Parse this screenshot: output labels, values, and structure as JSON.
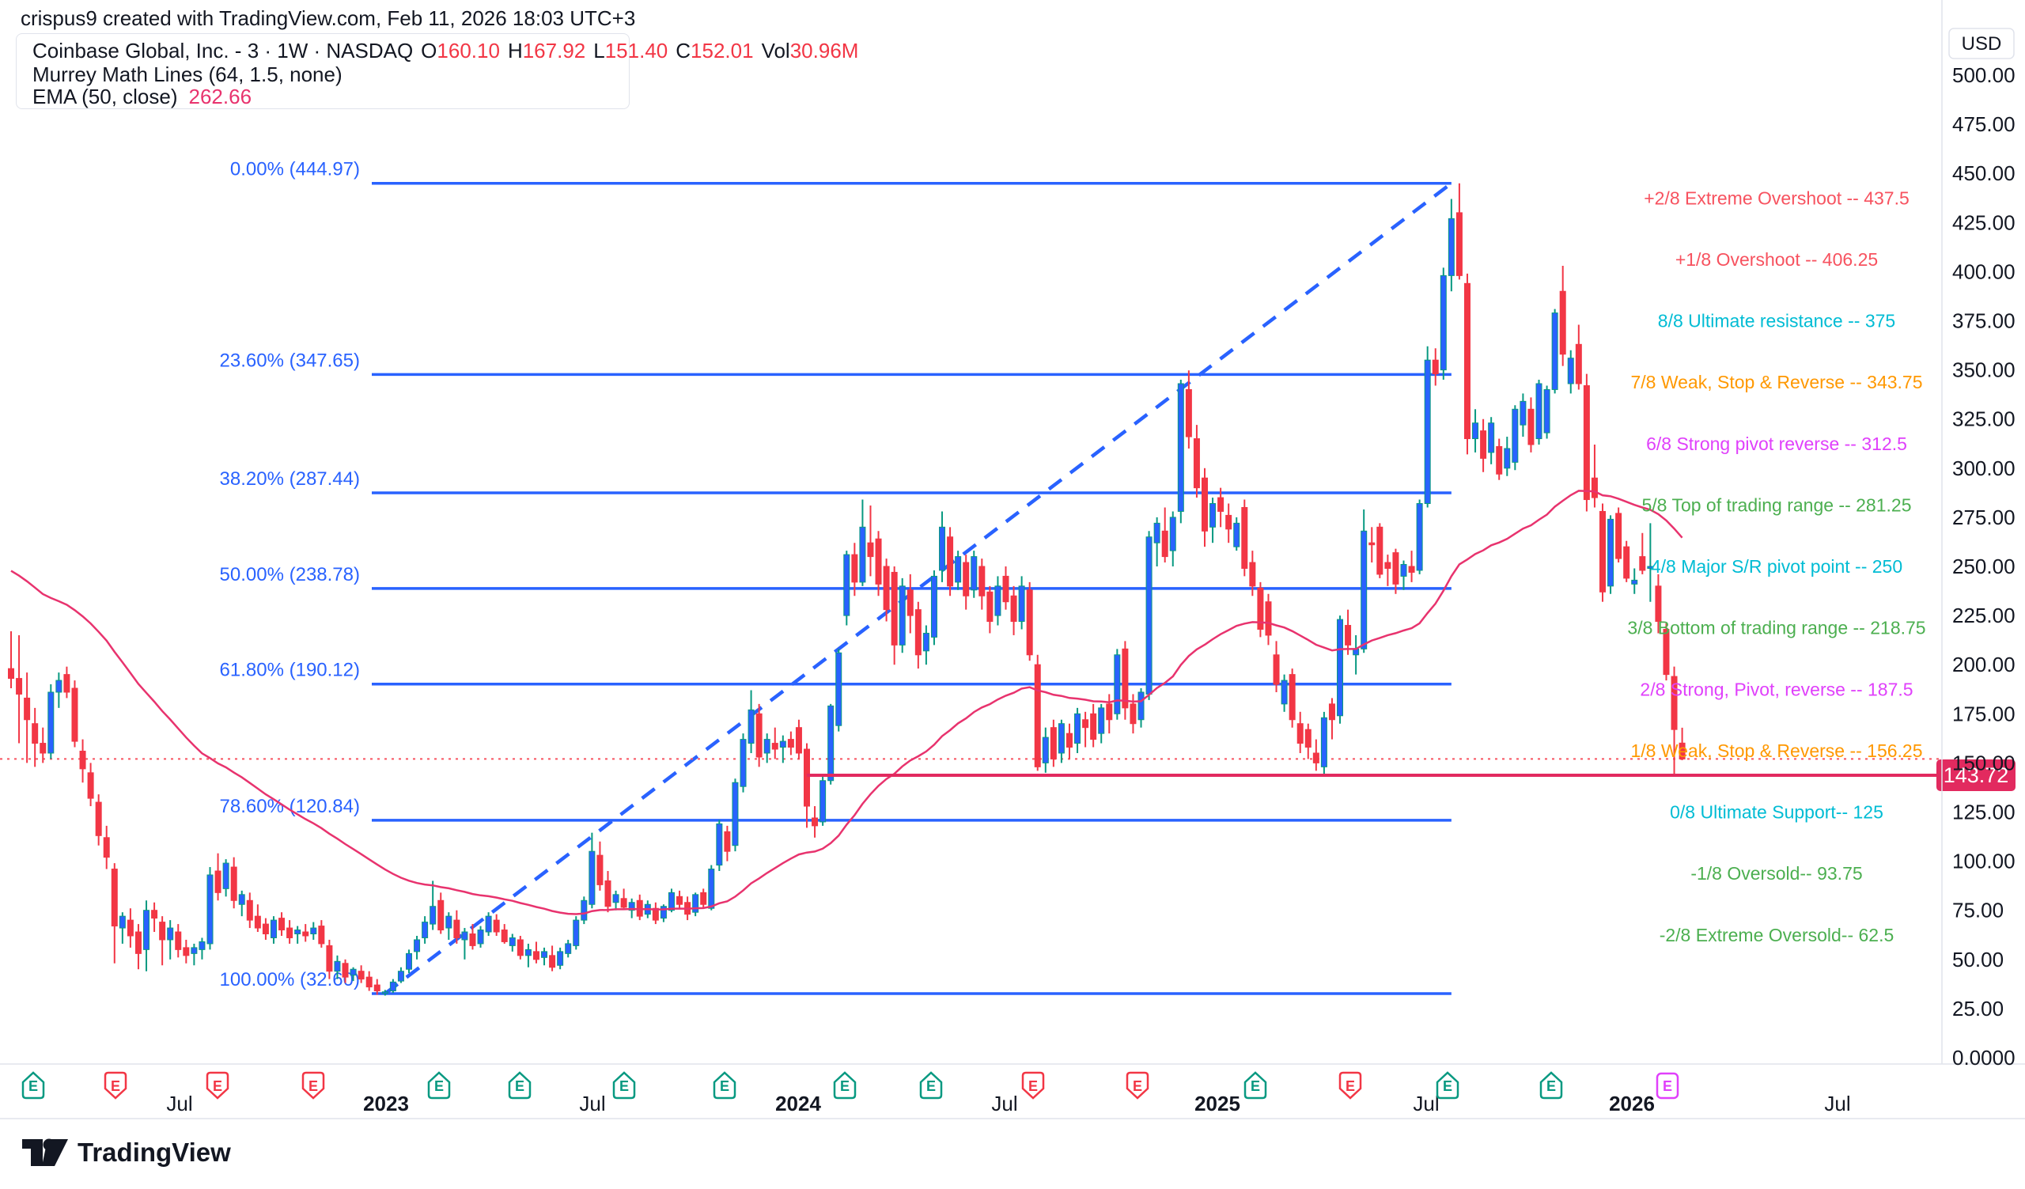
{
  "header": {
    "attribution": "crispus9 created with TradingView.com, Feb 11, 2026 18:03 UTC+3"
  },
  "legend": {
    "symbol_line": "Coinbase Global, Inc. - 3 · 1W · NASDAQ",
    "ohlc": {
      "o_label": "O",
      "o": "160.10",
      "h_label": "H",
      "h": "167.92",
      "l_label": "L",
      "l": "151.40",
      "c_label": "C",
      "c": "152.01",
      "vol_label": "Vol",
      "vol": "30.96M"
    },
    "indicator1": "Murrey Math Lines (64, 1.5, none)",
    "indicator2_label": "EMA (50, close)",
    "indicator2_value": "262.66"
  },
  "price_axis": {
    "currency": "USD",
    "ticks": [
      "500.00",
      "475.00",
      "450.00",
      "425.00",
      "400.00",
      "375.00",
      "350.00",
      "325.00",
      "300.00",
      "275.00",
      "250.00",
      "225.00",
      "200.00",
      "175.00",
      "150.00",
      "125.00",
      "100.00",
      "75.00",
      "50.00",
      "25.00"
    ],
    "zero_label": "0.0000",
    "price_badge": "143.72"
  },
  "time_axis": {
    "labels": [
      {
        "text": "Jul",
        "x": 227,
        "bold": false
      },
      {
        "text": "2023",
        "x": 488,
        "bold": true
      },
      {
        "text": "Jul",
        "x": 749,
        "bold": false
      },
      {
        "text": "2024",
        "x": 1009,
        "bold": true
      },
      {
        "text": "Jul",
        "x": 1270,
        "bold": false
      },
      {
        "text": "2025",
        "x": 1539,
        "bold": true
      },
      {
        "text": "Jul",
        "x": 1803,
        "bold": false
      },
      {
        "text": "2026",
        "x": 2063,
        "bold": true
      },
      {
        "text": "Jul",
        "x": 2323,
        "bold": false
      }
    ],
    "earnings_badges": [
      {
        "x": 42,
        "kind": "up"
      },
      {
        "x": 146,
        "kind": "down"
      },
      {
        "x": 275,
        "kind": "down"
      },
      {
        "x": 396,
        "kind": "down"
      },
      {
        "x": 555,
        "kind": "up"
      },
      {
        "x": 657,
        "kind": "up"
      },
      {
        "x": 789,
        "kind": "up"
      },
      {
        "x": 916,
        "kind": "up"
      },
      {
        "x": 1068,
        "kind": "up"
      },
      {
        "x": 1177,
        "kind": "up"
      },
      {
        "x": 1306,
        "kind": "down"
      },
      {
        "x": 1438,
        "kind": "down"
      },
      {
        "x": 1587,
        "kind": "up"
      },
      {
        "x": 1707,
        "kind": "down"
      },
      {
        "x": 1830,
        "kind": "up"
      },
      {
        "x": 1961,
        "kind": "up"
      },
      {
        "x": 2108,
        "kind": "future"
      }
    ]
  },
  "murrey_labels": [
    {
      "text": "+2/8 Extreme Overshoot --  437.5",
      "price": 437.5,
      "color": "#f7525f"
    },
    {
      "text": "+1/8 Overshoot --  406.25",
      "price": 406.25,
      "color": "#f7525f"
    },
    {
      "text": "8/8 Ultimate resistance --  375",
      "price": 375,
      "color": "#00bcd4"
    },
    {
      "text": "7/8 Weak, Stop & Reverse --  343.75",
      "price": 343.75,
      "color": "#ff9800"
    },
    {
      "text": "6/8 Strong pivot reverse --  312.5",
      "price": 312.5,
      "color": "#e040fb"
    },
    {
      "text": "5/8 Top of trading range --  281.25",
      "price": 281.25,
      "color": "#4caf50"
    },
    {
      "text": "4/8 Major S/R pivot point --  250",
      "price": 250,
      "color": "#00bcd4"
    },
    {
      "text": "3/8 Bottom of trading range --  218.75",
      "price": 218.75,
      "color": "#4caf50"
    },
    {
      "text": "2/8 Strong, Pivot, reverse --  187.5",
      "price": 187.5,
      "color": "#e040fb"
    },
    {
      "text": "1/8 Weak, Stop & Reverse --  156.25",
      "price": 156.25,
      "color": "#ff9800"
    },
    {
      "text": "0/8 Ultimate Support--  125",
      "price": 125,
      "color": "#00bcd4"
    },
    {
      "text": "-1/8 Oversold--  93.75",
      "price": 93.75,
      "color": "#4caf50"
    },
    {
      "text": "-2/8 Extreme Oversold--  62.5",
      "price": 62.5,
      "color": "#4caf50"
    }
  ],
  "fib": {
    "levels": [
      {
        "label": "0.00% (444.97)",
        "price": 444.97
      },
      {
        "label": "23.60% (347.65)",
        "price": 347.65
      },
      {
        "label": "38.20% (287.44)",
        "price": 287.44
      },
      {
        "label": "50.00% (238.78)",
        "price": 238.78
      },
      {
        "label": "61.80% (190.12)",
        "price": 190.12
      },
      {
        "label": "78.60% (120.84)",
        "price": 120.84
      },
      {
        "label": "100.00% (32.60)",
        "price": 32.6
      }
    ]
  },
  "chart_data": {
    "type": "candlestick",
    "title": "Coinbase Global, Inc. weekly chart",
    "interval": "1W",
    "start_week": "2022-02-07",
    "ylim": [
      0,
      515
    ],
    "ylabel": "USD",
    "close_price_line": 152.01,
    "horizontal_ray": {
      "from_week": 100,
      "price": 143.72
    },
    "trendline": {
      "from_week": 47,
      "from_price": 32.6,
      "to_week": 181,
      "to_price": 444.97
    },
    "ema": {
      "period": 50,
      "seed": 250,
      "last_value": 262.66
    },
    "candles": [
      [
        198,
        217,
        188,
        193
      ],
      [
        193,
        215,
        160,
        185
      ],
      [
        183,
        196,
        150,
        172
      ],
      [
        170,
        178,
        148,
        160
      ],
      [
        160,
        168,
        150,
        155
      ],
      [
        155,
        190,
        152,
        186
      ],
      [
        186,
        196,
        178,
        192
      ],
      [
        195,
        199,
        183,
        186
      ],
      [
        188,
        192,
        158,
        161
      ],
      [
        156,
        162,
        140,
        147
      ],
      [
        145,
        150,
        128,
        132
      ],
      [
        130,
        134,
        108,
        113
      ],
      [
        112,
        118,
        96,
        102
      ],
      [
        96,
        99,
        48,
        67
      ],
      [
        66,
        74,
        58,
        72
      ],
      [
        70,
        76,
        56,
        62
      ],
      [
        64,
        68,
        45,
        53
      ],
      [
        55,
        80,
        44,
        75
      ],
      [
        75,
        79,
        64,
        71
      ],
      [
        69,
        72,
        47,
        60
      ],
      [
        60,
        70,
        50,
        66
      ],
      [
        64,
        68,
        51,
        55
      ],
      [
        56,
        60,
        48,
        52
      ],
      [
        53,
        58,
        47,
        56
      ],
      [
        55,
        61,
        50,
        59
      ],
      [
        58,
        97,
        55,
        93
      ],
      [
        95,
        104,
        80,
        84
      ],
      [
        86,
        101,
        82,
        99
      ],
      [
        97,
        102,
        76,
        80
      ],
      [
        78,
        85,
        72,
        83
      ],
      [
        80,
        84,
        66,
        70
      ],
      [
        72,
        78,
        64,
        66
      ],
      [
        68,
        71,
        60,
        63
      ],
      [
        61,
        72,
        58,
        70
      ],
      [
        71,
        74,
        62,
        65
      ],
      [
        66,
        70,
        58,
        61
      ],
      [
        63,
        67,
        58,
        65
      ],
      [
        64,
        68,
        59,
        62
      ],
      [
        63,
        69,
        60,
        66
      ],
      [
        67,
        70,
        56,
        58
      ],
      [
        57,
        60,
        40,
        44
      ],
      [
        44,
        52,
        40,
        49
      ],
      [
        48,
        50,
        38,
        41
      ],
      [
        42,
        46,
        39,
        45
      ],
      [
        44,
        47,
        38,
        40
      ],
      [
        41,
        44,
        34,
        36
      ],
      [
        37,
        40,
        32,
        34
      ],
      [
        33,
        34.5,
        31.6,
        33.5
      ],
      [
        34,
        40,
        33,
        38.5
      ],
      [
        39,
        46,
        38,
        44
      ],
      [
        45,
        55,
        43,
        53
      ],
      [
        54,
        62,
        50,
        60
      ],
      [
        61,
        72,
        58,
        69
      ],
      [
        68,
        90,
        65,
        77
      ],
      [
        80,
        84,
        63,
        65
      ],
      [
        66,
        74,
        60,
        72
      ],
      [
        70,
        75,
        58,
        61
      ],
      [
        60,
        66,
        50,
        64
      ],
      [
        63,
        68,
        55,
        57
      ],
      [
        58,
        67,
        56,
        65
      ],
      [
        64,
        74,
        62,
        72
      ],
      [
        70,
        73,
        62,
        64
      ],
      [
        65,
        68,
        58,
        59
      ],
      [
        57,
        63,
        54,
        61
      ],
      [
        60,
        62,
        50,
        52
      ],
      [
        52,
        58,
        46,
        55
      ],
      [
        54,
        59,
        48,
        50
      ],
      [
        51,
        56,
        47,
        54
      ],
      [
        52,
        57,
        44,
        46
      ],
      [
        47,
        56,
        45,
        54
      ],
      [
        53,
        60,
        51,
        58
      ],
      [
        57,
        72,
        55,
        70
      ],
      [
        70,
        82,
        68,
        80
      ],
      [
        78,
        114.5,
        76,
        105
      ],
      [
        103,
        110,
        85,
        88
      ],
      [
        90,
        95,
        74,
        77
      ],
      [
        79,
        85,
        75,
        83
      ],
      [
        81,
        86,
        76,
        76.5
      ],
      [
        75,
        81,
        71,
        79
      ],
      [
        80,
        83,
        70,
        72
      ],
      [
        73,
        80,
        71,
        78
      ],
      [
        76,
        79,
        68,
        70
      ],
      [
        71,
        78,
        69,
        77
      ],
      [
        75,
        86,
        74,
        84
      ],
      [
        82,
        85,
        76,
        78
      ],
      [
        79,
        82,
        70,
        73
      ],
      [
        74,
        84,
        72,
        83
      ],
      [
        84,
        86,
        76,
        78
      ],
      [
        76,
        98,
        75,
        96
      ],
      [
        98,
        121,
        95,
        119
      ],
      [
        115,
        118,
        100,
        105
      ],
      [
        108,
        142,
        105,
        140
      ],
      [
        138,
        165,
        135,
        162
      ],
      [
        160,
        187,
        155,
        177
      ],
      [
        175,
        180,
        148,
        153
      ],
      [
        155,
        165,
        150,
        162
      ],
      [
        160,
        168,
        152,
        157
      ],
      [
        158,
        164,
        150,
        161
      ],
      [
        162,
        166,
        154,
        158
      ],
      [
        168,
        172,
        152,
        155
      ],
      [
        157,
        160,
        117,
        128
      ],
      [
        122,
        128,
        112,
        118
      ],
      [
        120,
        143,
        118,
        141
      ],
      [
        141,
        180,
        139,
        179
      ],
      [
        169,
        208,
        166,
        206
      ],
      [
        225,
        258,
        220,
        256
      ],
      [
        256,
        262,
        235,
        242
      ],
      [
        242,
        284,
        240,
        270
      ],
      [
        262,
        281,
        245,
        255
      ],
      [
        264,
        268,
        235,
        241
      ],
      [
        250,
        254,
        222,
        228
      ],
      [
        247,
        250,
        200,
        210
      ],
      [
        210,
        244,
        206,
        240
      ],
      [
        238,
        246,
        216,
        225
      ],
      [
        228,
        232,
        198,
        205
      ],
      [
        207,
        220,
        200,
        216
      ],
      [
        214,
        248,
        210,
        245
      ],
      [
        248,
        278,
        242,
        270
      ],
      [
        265,
        270,
        235,
        240
      ],
      [
        242,
        258,
        238,
        255
      ],
      [
        252,
        256,
        228,
        235
      ],
      [
        238,
        258,
        234,
        255
      ],
      [
        250,
        254,
        228,
        235
      ],
      [
        237,
        240,
        216,
        222
      ],
      [
        225,
        245,
        220,
        240
      ],
      [
        245,
        250,
        228,
        232
      ],
      [
        235,
        240,
        215,
        222
      ],
      [
        222,
        245,
        218,
        240
      ],
      [
        238,
        242,
        202,
        205
      ],
      [
        200,
        205,
        146,
        148
      ],
      [
        150,
        168,
        145,
        163
      ],
      [
        168,
        172,
        148,
        152
      ],
      [
        155,
        172,
        150,
        170
      ],
      [
        165,
        170,
        152,
        158
      ],
      [
        160,
        178,
        155,
        175
      ],
      [
        172,
        176,
        158,
        168
      ],
      [
        175,
        180,
        158,
        162
      ],
      [
        165,
        180,
        160,
        178
      ],
      [
        180,
        185,
        165,
        172
      ],
      [
        175,
        208,
        172,
        205
      ],
      [
        208,
        212,
        172,
        178
      ],
      [
        180,
        185,
        165,
        170
      ],
      [
        172,
        188,
        168,
        186
      ],
      [
        185,
        268,
        182,
        265
      ],
      [
        262,
        275,
        250,
        272
      ],
      [
        268,
        280,
        252,
        255
      ],
      [
        258,
        278,
        250,
        275
      ],
      [
        278,
        345,
        272,
        343
      ],
      [
        340,
        349.75,
        310,
        316
      ],
      [
        315,
        322,
        285,
        290
      ],
      [
        295,
        300,
        260,
        268
      ],
      [
        270,
        285,
        262,
        282
      ],
      [
        285,
        290,
        270,
        278
      ],
      [
        276,
        282,
        262,
        269
      ],
      [
        260,
        275,
        258,
        272
      ],
      [
        280,
        284,
        245,
        249
      ],
      [
        252,
        258,
        235,
        240
      ],
      [
        239,
        242,
        214,
        218
      ],
      [
        232,
        236,
        210,
        215
      ],
      [
        205,
        212,
        186,
        190
      ],
      [
        180,
        195,
        176,
        192
      ],
      [
        195,
        198,
        168,
        172
      ],
      [
        170,
        176,
        155,
        160
      ],
      [
        167,
        170,
        152,
        158
      ],
      [
        155,
        162,
        146,
        150
      ],
      [
        148,
        176,
        143.72,
        173
      ],
      [
        180,
        183,
        162,
        172
      ],
      [
        174,
        225,
        170,
        223
      ],
      [
        220,
        228,
        205,
        210
      ],
      [
        205,
        215,
        195,
        208
      ],
      [
        208,
        279,
        206,
        268
      ],
      [
        262,
        270,
        252,
        261
      ],
      [
        270,
        272,
        244,
        246
      ],
      [
        252,
        256,
        240,
        249
      ],
      [
        257,
        259,
        236,
        241
      ],
      [
        245,
        253,
        238,
        251
      ],
      [
        250,
        258,
        242,
        247
      ],
      [
        248,
        284,
        246,
        282
      ],
      [
        282,
        362,
        280,
        355
      ],
      [
        355,
        361,
        342,
        348
      ],
      [
        350,
        402,
        345,
        398
      ],
      [
        398,
        437,
        390,
        427
      ],
      [
        430,
        444.97,
        396,
        398
      ],
      [
        394,
        399,
        307,
        315
      ],
      [
        315,
        330,
        308,
        323
      ],
      [
        319,
        325,
        298,
        305
      ],
      [
        308,
        326,
        302,
        323
      ],
      [
        311,
        315,
        294,
        297
      ],
      [
        300,
        316,
        296,
        310
      ],
      [
        303,
        332,
        299,
        330
      ],
      [
        322,
        338,
        316,
        334
      ],
      [
        330,
        336,
        308,
        312
      ],
      [
        315,
        345,
        312,
        343
      ],
      [
        318,
        342,
        315,
        340
      ],
      [
        340,
        381,
        338,
        379
      ],
      [
        390,
        403,
        352,
        358
      ],
      [
        343,
        360,
        338,
        356
      ],
      [
        363,
        373,
        340,
        343
      ],
      [
        342,
        348,
        278,
        284
      ],
      [
        295,
        312,
        280,
        285
      ],
      [
        278,
        282,
        232,
        237
      ],
      [
        240,
        276,
        236,
        274
      ],
      [
        277,
        280,
        252,
        254
      ],
      [
        260,
        263,
        242,
        244
      ],
      [
        241,
        249,
        236,
        243
      ],
      [
        255,
        267,
        246,
        248
      ],
      [
        249,
        272,
        232,
        250
      ],
      [
        240,
        246,
        216,
        222
      ],
      [
        218,
        221,
        192,
        195
      ],
      [
        194,
        199,
        144.5,
        167
      ],
      [
        160.1,
        167.92,
        151.4,
        152.01
      ]
    ]
  },
  "footer": {
    "brand": "TradingView"
  },
  "colors": {
    "up_body": "#2962ff",
    "up_wick": "#089981",
    "down": "#f23645",
    "fib": "#2962ff",
    "ema_line": "#e8336e",
    "ray": "#e22a5f",
    "close_dotted": "#f7525f",
    "axis_border": "#e0e3eb",
    "text": "#131722",
    "badge_up": "#089981",
    "badge_down": "#f23645",
    "badge_future": "#e040fb"
  }
}
